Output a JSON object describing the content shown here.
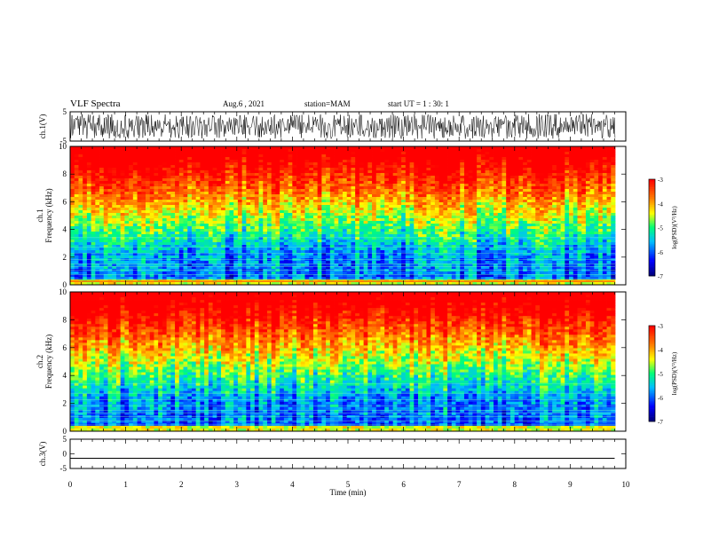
{
  "header": {
    "title": "VLF Spectra",
    "date": "Aug.6 , 2021",
    "station": "station=MAM",
    "start": "start UT = 1 : 30: 1"
  },
  "chart_data": [
    {
      "type": "line",
      "panel": "ch1-waveform",
      "ylabel": "ch.1(V)",
      "yticks": [
        "5",
        "-5"
      ],
      "ylim": [
        -5,
        5
      ],
      "xlim": [
        0,
        10
      ],
      "description_series": "dense oscillating waveform, amplitude ~±4 V"
    },
    {
      "type": "heatmap",
      "panel": "ch1-spectrogram",
      "ylabel": "ch.1\nFrequency (kHz)",
      "yticks": [
        "0",
        "2",
        "4",
        "6",
        "8",
        "10"
      ],
      "ylim": [
        0,
        10
      ],
      "xlim": [
        0,
        10
      ],
      "colorbar": {
        "label": "log(PSD)(V²/Hz)",
        "ticks": [
          "-3",
          "-4",
          "-5",
          "-6",
          "-7"
        ],
        "range": [
          -7,
          -3
        ]
      }
    },
    {
      "type": "heatmap",
      "panel": "ch2-spectrogram",
      "ylabel": "ch.2\nFrequency (kHz)",
      "yticks": [
        "0",
        "2",
        "4",
        "6",
        "8",
        "10"
      ],
      "ylim": [
        0,
        10
      ],
      "xlim": [
        0,
        10
      ],
      "colorbar": {
        "label": "log(PSD)(V²/Hz)",
        "ticks": [
          "-3",
          "-4",
          "-5",
          "-6",
          "-7"
        ],
        "range": [
          -7,
          -3
        ]
      }
    },
    {
      "type": "line",
      "panel": "ch3-waveform",
      "ylabel": "ch.3(V)",
      "yticks": [
        "5",
        "0",
        "-5"
      ],
      "ylim": [
        -5,
        5
      ],
      "xlim": [
        0,
        10
      ],
      "series": [
        {
          "x": [
            0,
            9.8
          ],
          "y": [
            -1.5,
            -1.5
          ]
        }
      ]
    }
  ],
  "xaxis": {
    "label": "Time (min)",
    "ticks": [
      "0",
      "1",
      "2",
      "3",
      "4",
      "5",
      "6",
      "7",
      "8",
      "9",
      "10"
    ]
  },
  "colors": [
    "#00007f",
    "#0000ff",
    "#00bfff",
    "#00ff80",
    "#ffff00",
    "#ff8000",
    "#ff0000"
  ]
}
